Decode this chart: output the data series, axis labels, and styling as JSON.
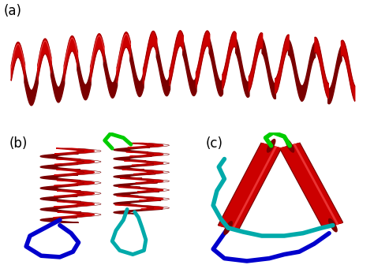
{
  "background_color": "#ffffff",
  "label_a": "(a)",
  "label_b": "(b)",
  "label_c": "(c)",
  "label_fontsize": 12,
  "label_color": "#000000",
  "helix_red": "#cc0000",
  "helix_red_dark": "#7a0000",
  "helix_red_light": "#ff4444",
  "loop_green": "#00cc00",
  "loop_blue": "#0000cc",
  "loop_cyan": "#00aaaa",
  "fig_width": 4.74,
  "fig_height": 3.36,
  "dpi": 100
}
